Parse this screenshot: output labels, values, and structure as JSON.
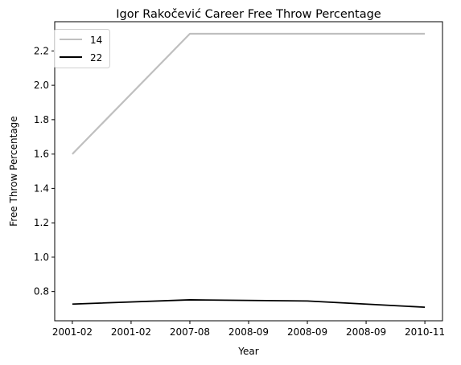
{
  "chart_data": {
    "type": "line",
    "title": "Igor Rakočević Career Free Throw Percentage",
    "xlabel": "Year",
    "ylabel": "Free Throw Percentage",
    "x": [
      "2001-02",
      "2001-02",
      "2007-08",
      "2008-09",
      "2008-09",
      "2008-09",
      "2010-11"
    ],
    "yticks": [
      "0.8",
      "1.0",
      "1.2",
      "1.4",
      "1.6",
      "1.8",
      "2.0",
      "2.2"
    ],
    "ylim": [
      0.63,
      2.37
    ],
    "grid": false,
    "legend_position": "top-left",
    "series": [
      {
        "name": "14",
        "color": "#bfbfbf",
        "points": [
          [
            0,
            1.6
          ],
          [
            2,
            2.3
          ],
          [
            6,
            2.3
          ]
        ]
      },
      {
        "name": "22",
        "color": "#000000",
        "points": [
          [
            0,
            0.727
          ],
          [
            2,
            0.752
          ],
          [
            4,
            0.745
          ],
          [
            6,
            0.709
          ]
        ]
      }
    ]
  }
}
